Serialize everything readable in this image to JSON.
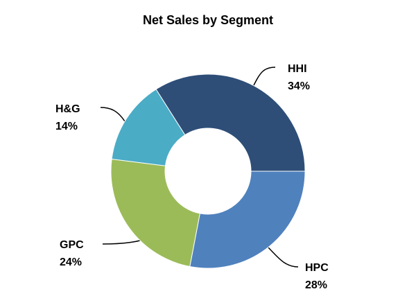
{
  "chart_data": {
    "type": "donut",
    "title": "Net Sales by Segment",
    "categories": [
      "HHI",
      "HPC",
      "GPC",
      "H&G"
    ],
    "values": [
      34,
      28,
      24,
      14
    ],
    "value_labels": [
      "34%",
      "28%",
      "24%",
      "14%"
    ],
    "colors": [
      "#2e4e78",
      "#4f81bd",
      "#9bbb59",
      "#4bacc6"
    ]
  }
}
